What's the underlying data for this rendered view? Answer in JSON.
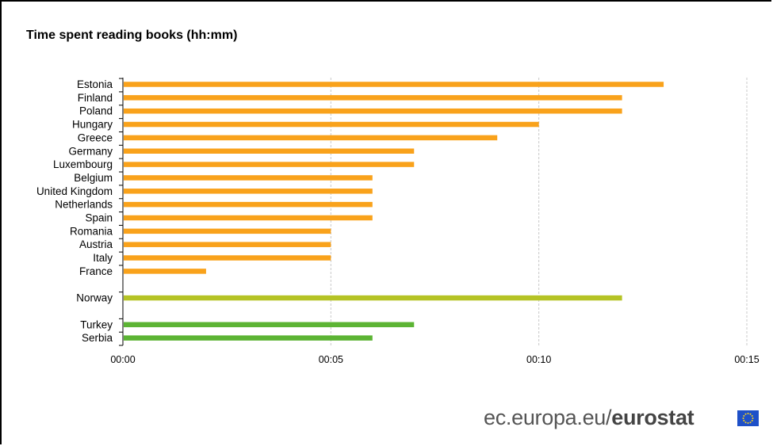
{
  "chart_data": {
    "type": "bar",
    "orientation": "horizontal",
    "title": "Time spent reading books (hh:mm)",
    "xlabel": "",
    "ylabel": "",
    "xlim": [
      0,
      15
    ],
    "x_ticks": [
      "00:00",
      "00:05",
      "00:10",
      "00:15"
    ],
    "x_tick_values": [
      0,
      5,
      10,
      15
    ],
    "grid": "vertical dashed",
    "groups": [
      {
        "color": "#f9a21b",
        "categories": [
          "Estonia",
          "Finland",
          "Poland",
          "Hungary",
          "Greece",
          "Germany",
          "Luxembourg",
          "Belgium",
          "United Kingdom",
          "Netherlands",
          "Spain",
          "Romania",
          "Austria",
          "Italy",
          "France"
        ],
        "values": [
          13,
          12,
          12,
          10,
          9,
          7,
          7,
          6,
          6,
          6,
          6,
          5,
          5,
          5,
          2
        ]
      },
      {
        "color": "#b5c325",
        "categories": [
          "Norway"
        ],
        "values": [
          12
        ]
      },
      {
        "color": "#5cb434",
        "categories": [
          "Turkey",
          "Serbia"
        ],
        "values": [
          7,
          6
        ]
      }
    ]
  },
  "branding": {
    "domain_text": "ec.europa.eu/",
    "brand_text": "eurostat",
    "flag_color": "#1e50c8"
  }
}
